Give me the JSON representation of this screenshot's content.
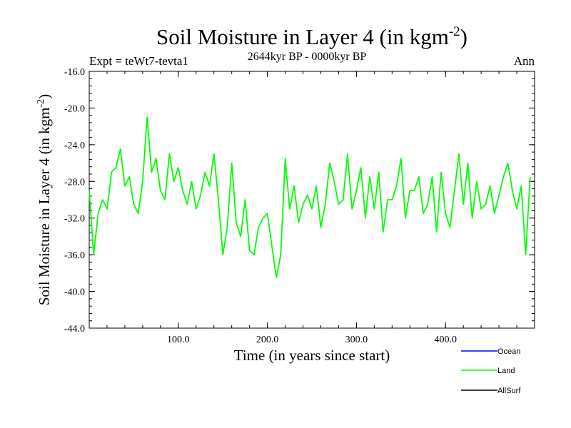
{
  "title_main": "Soil Moisture in Layer 4 (in kgm",
  "title_sup": "-2",
  "title_close": ")",
  "subtitle": "2644kyr BP - 0000kyr BP",
  "expt_label": "Expt = teWt7-tevta1",
  "season_label": "Ann",
  "legend": [
    {
      "name": "Ocean",
      "color": "#0000ff"
    },
    {
      "name": "Land",
      "color": "#00ff00"
    },
    {
      "name": "AllSurf",
      "color": "#000000"
    }
  ],
  "chart_data": {
    "type": "line",
    "title": "Soil Moisture in Layer 4 (in kgm-2)",
    "subtitle": "2644kyr BP - 0000kyr BP",
    "xlabel": "Time (in years since start)",
    "ylabel_main": "Soil Moisture in Layer 4 (in kgm",
    "ylabel_sup": "-2",
    "ylabel_close": ")",
    "xlim": [
      0,
      500
    ],
    "ylim": [
      -44,
      -16
    ],
    "x_ticks": [
      100,
      200,
      300,
      400
    ],
    "x_tick_labels": [
      "100.0",
      "200.0",
      "300.0",
      "400.0"
    ],
    "y_ticks": [
      -44,
      -40,
      -36,
      -32,
      -28,
      -24,
      -20,
      -16
    ],
    "y_tick_labels": [
      "-44.0",
      "-40.0",
      "-36.0",
      "-32.0",
      "-28.0",
      "-24.0",
      "-20.0",
      "-16.0"
    ],
    "series": [
      {
        "name": "Land",
        "color": "#00ff00",
        "x": [
          0,
          5,
          10,
          15,
          20,
          25,
          30,
          35,
          40,
          45,
          50,
          55,
          60,
          65,
          70,
          75,
          80,
          85,
          90,
          95,
          100,
          105,
          110,
          115,
          120,
          125,
          130,
          135,
          140,
          145,
          150,
          155,
          160,
          165,
          170,
          175,
          180,
          185,
          190,
          195,
          200,
          205,
          210,
          215,
          220,
          225,
          230,
          235,
          240,
          245,
          250,
          255,
          260,
          265,
          270,
          275,
          280,
          285,
          290,
          295,
          300,
          305,
          310,
          315,
          320,
          325,
          330,
          335,
          340,
          345,
          350,
          355,
          360,
          365,
          370,
          375,
          380,
          385,
          390,
          395,
          400,
          405,
          410,
          415,
          420,
          425,
          430,
          435,
          440,
          445,
          450,
          455,
          460,
          465,
          470,
          475,
          480,
          485,
          490,
          495
        ],
        "values": [
          -29.0,
          -36.0,
          -31.5,
          -30.0,
          -31.0,
          -27.0,
          -26.5,
          -24.5,
          -28.5,
          -27.5,
          -30.5,
          -31.5,
          -28.0,
          -21.0,
          -27.0,
          -25.5,
          -29.0,
          -30.0,
          -25.0,
          -28.0,
          -26.5,
          -29.0,
          -30.5,
          -28.0,
          -31.0,
          -29.5,
          -27.0,
          -28.5,
          -25.0,
          -30.0,
          -36.0,
          -33.0,
          -26.0,
          -32.5,
          -34.0,
          -30.0,
          -35.5,
          -36.0,
          -33.0,
          -32.0,
          -31.5,
          -35.0,
          -38.5,
          -36.0,
          -25.5,
          -31.0,
          -28.5,
          -32.5,
          -30.5,
          -29.5,
          -31.0,
          -28.5,
          -33.0,
          -30.5,
          -26.0,
          -28.0,
          -30.5,
          -30.0,
          -25.0,
          -31.0,
          -29.0,
          -26.5,
          -32.0,
          -27.5,
          -31.0,
          -27.0,
          -33.5,
          -30.0,
          -30.0,
          -28.5,
          -25.5,
          -32.0,
          -29.0,
          -29.0,
          -27.5,
          -31.5,
          -30.5,
          -27.5,
          -33.5,
          -27.0,
          -31.5,
          -33.0,
          -29.0,
          -25.0,
          -30.5,
          -26.0,
          -32.0,
          -28.0,
          -31.0,
          -30.5,
          -28.5,
          -31.5,
          -29.5,
          -27.5,
          -26.0,
          -29.0,
          -31.0,
          -28.5,
          -36.0,
          -27.5
        ]
      },
      {
        "name": "Ocean",
        "color": "#0000ff",
        "x": [],
        "values": []
      },
      {
        "name": "AllSurf",
        "color": "#000000",
        "x": [],
        "values": []
      }
    ]
  }
}
